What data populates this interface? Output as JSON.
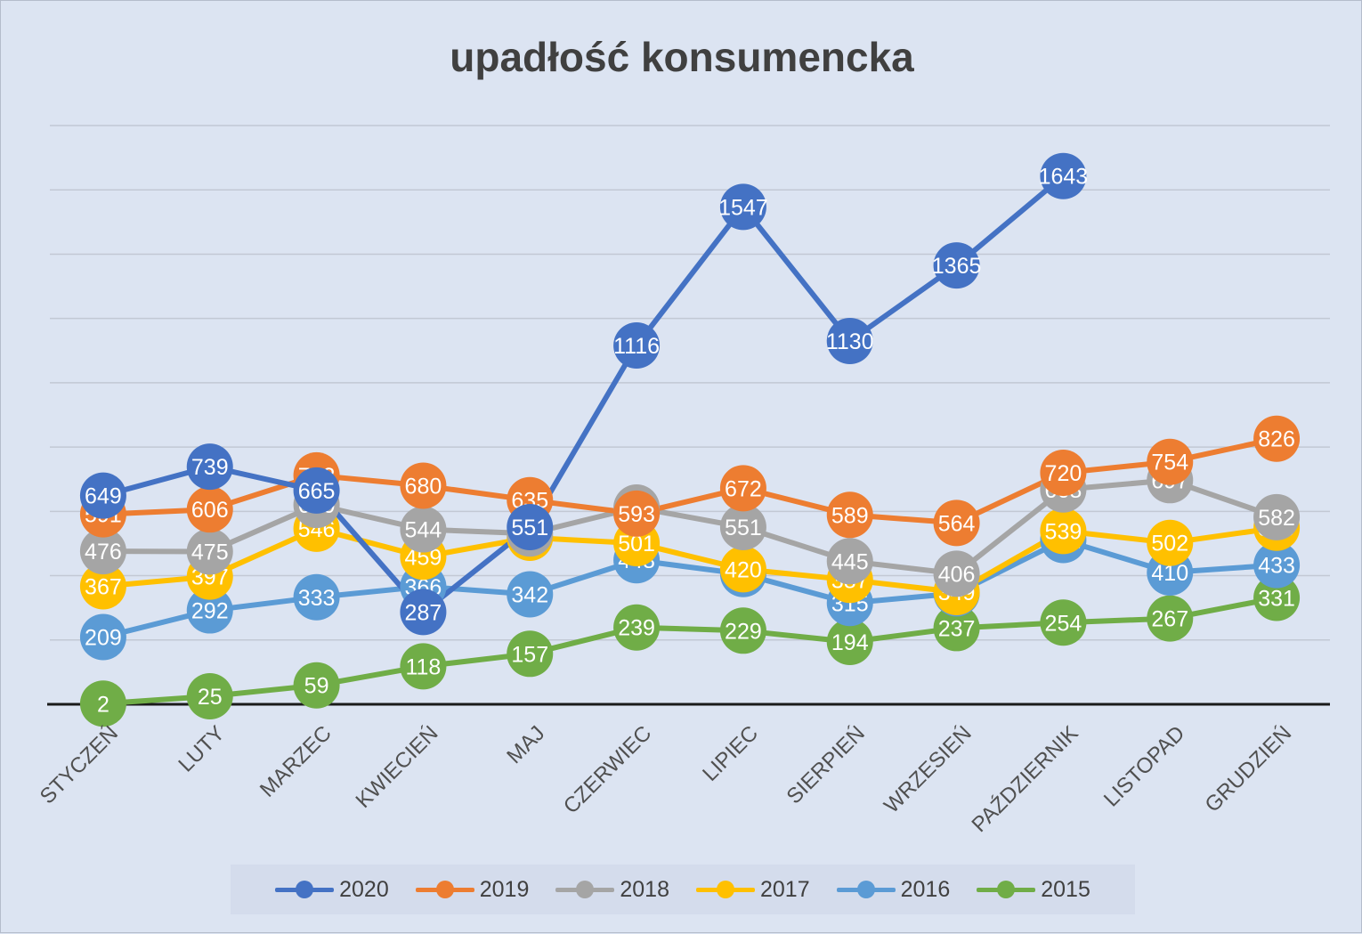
{
  "chart_data": {
    "type": "line",
    "title": "upadłość konsumencka",
    "categories": [
      "STYCZEŃ",
      "LUTY",
      "MARZEC",
      "KWIECIEŃ",
      "MAJ",
      "CZERWIEC",
      "LIPIEC",
      "SIERPIEŃ",
      "WRZESIEŃ",
      "PAŹDZIERNIK",
      "LISTOPAD",
      "GRUDZIEŃ"
    ],
    "ylim": [
      0,
      1800
    ],
    "grid": true,
    "legend": "bottom",
    "series": [
      {
        "name": "2020",
        "color": "#4472c4",
        "values": [
          649,
          739,
          665,
          287,
          551,
          1116,
          1547,
          1130,
          1365,
          1643,
          null,
          null
        ]
      },
      {
        "name": "2019",
        "color": "#ed7d31",
        "values": [
          591,
          606,
          712,
          680,
          635,
          593,
          672,
          589,
          564,
          720,
          754,
          826
        ]
      },
      {
        "name": "2018",
        "color": "#a5a5a5",
        "values": [
          476,
          475,
          620,
          544,
          531,
          612,
          551,
          445,
          406,
          668,
          697,
          582
        ]
      },
      {
        "name": "2017",
        "color": "#ffc000",
        "values": [
          367,
          397,
          546,
          459,
          518,
          501,
          420,
          387,
          349,
          539,
          502,
          549
        ]
      },
      {
        "name": "2016",
        "color": "#5b9bd5",
        "values": [
          209,
          292,
          333,
          366,
          342,
          448,
          405,
          315,
          345,
          511,
          410,
          433
        ]
      },
      {
        "name": "2015",
        "color": "#70ad47",
        "values": [
          2,
          25,
          59,
          118,
          157,
          239,
          229,
          194,
          237,
          254,
          267,
          331
        ]
      }
    ]
  }
}
